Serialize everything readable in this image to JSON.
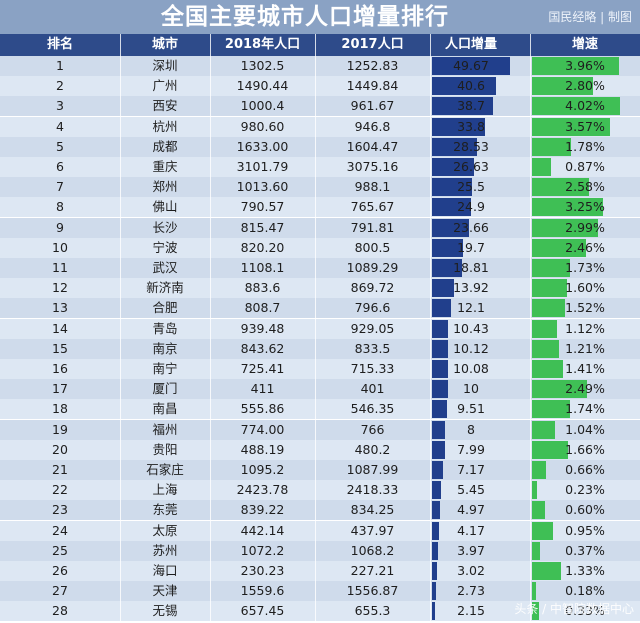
{
  "title": "全国主要城市人口增量排行",
  "credit": "国民经略 | 制图",
  "columns": {
    "rank": "排名",
    "city": "城市",
    "pop_2018": "2018年人口",
    "pop_2017": "2017人口",
    "increase": "人口增量",
    "growth": "增速"
  },
  "watermark": "头条 / 中智院数据中心",
  "colors": {
    "increase_bar": "#213f8c",
    "growth_bar": "#3fbf55",
    "header_bg": "#2e4b8a",
    "title_bg": "#8aa2c4"
  },
  "chart_data": {
    "type": "table",
    "title": "全国主要城市人口增量排行",
    "columns": [
      "排名",
      "城市",
      "2018年人口",
      "2017人口",
      "人口增量",
      "增速"
    ],
    "rows": [
      {
        "rank": "1",
        "city": "深圳",
        "pop_2018": "1302.5",
        "pop_2017": "1252.83",
        "increase": "49.67",
        "growth": "3.96%"
      },
      {
        "rank": "2",
        "city": "广州",
        "pop_2018": "1490.44",
        "pop_2017": "1449.84",
        "increase": "40.6",
        "growth": "2.80%"
      },
      {
        "rank": "3",
        "city": "西安",
        "pop_2018": "1000.4",
        "pop_2017": "961.67",
        "increase": "38.7",
        "growth": "4.02%"
      },
      {
        "rank": "4",
        "city": "杭州",
        "pop_2018": "980.60",
        "pop_2017": "946.8",
        "increase": "33.8",
        "growth": "3.57%"
      },
      {
        "rank": "5",
        "city": "成都",
        "pop_2018": "1633.00",
        "pop_2017": "1604.47",
        "increase": "28.53",
        "growth": "1.78%"
      },
      {
        "rank": "6",
        "city": "重庆",
        "pop_2018": "3101.79",
        "pop_2017": "3075.16",
        "increase": "26.63",
        "growth": "0.87%"
      },
      {
        "rank": "7",
        "city": "郑州",
        "pop_2018": "1013.60",
        "pop_2017": "988.1",
        "increase": "25.5",
        "growth": "2.58%"
      },
      {
        "rank": "8",
        "city": "佛山",
        "pop_2018": "790.57",
        "pop_2017": "765.67",
        "increase": "24.9",
        "growth": "3.25%"
      },
      {
        "rank": "9",
        "city": "长沙",
        "pop_2018": "815.47",
        "pop_2017": "791.81",
        "increase": "23.66",
        "growth": "2.99%"
      },
      {
        "rank": "10",
        "city": "宁波",
        "pop_2018": "820.20",
        "pop_2017": "800.5",
        "increase": "19.7",
        "growth": "2.46%"
      },
      {
        "rank": "11",
        "city": "武汉",
        "pop_2018": "1108.1",
        "pop_2017": "1089.29",
        "increase": "18.81",
        "growth": "1.73%"
      },
      {
        "rank": "12",
        "city": "新济南",
        "pop_2018": "883.6",
        "pop_2017": "869.72",
        "increase": "13.92",
        "growth": "1.60%"
      },
      {
        "rank": "13",
        "city": "合肥",
        "pop_2018": "808.7",
        "pop_2017": "796.6",
        "increase": "12.1",
        "growth": "1.52%"
      },
      {
        "rank": "14",
        "city": "青岛",
        "pop_2018": "939.48",
        "pop_2017": "929.05",
        "increase": "10.43",
        "growth": "1.12%"
      },
      {
        "rank": "15",
        "city": "南京",
        "pop_2018": "843.62",
        "pop_2017": "833.5",
        "increase": "10.12",
        "growth": "1.21%"
      },
      {
        "rank": "16",
        "city": "南宁",
        "pop_2018": "725.41",
        "pop_2017": "715.33",
        "increase": "10.08",
        "growth": "1.41%"
      },
      {
        "rank": "17",
        "city": "厦门",
        "pop_2018": "411",
        "pop_2017": "401",
        "increase": "10",
        "growth": "2.49%"
      },
      {
        "rank": "18",
        "city": "南昌",
        "pop_2018": "555.86",
        "pop_2017": "546.35",
        "increase": "9.51",
        "growth": "1.74%"
      },
      {
        "rank": "19",
        "city": "福州",
        "pop_2018": "774.00",
        "pop_2017": "766",
        "increase": "8",
        "growth": "1.04%"
      },
      {
        "rank": "20",
        "city": "贵阳",
        "pop_2018": "488.19",
        "pop_2017": "480.2",
        "increase": "7.99",
        "growth": "1.66%"
      },
      {
        "rank": "21",
        "city": "石家庄",
        "pop_2018": "1095.2",
        "pop_2017": "1087.99",
        "increase": "7.17",
        "growth": "0.66%"
      },
      {
        "rank": "22",
        "city": "上海",
        "pop_2018": "2423.78",
        "pop_2017": "2418.33",
        "increase": "5.45",
        "growth": "0.23%"
      },
      {
        "rank": "23",
        "city": "东莞",
        "pop_2018": "839.22",
        "pop_2017": "834.25",
        "increase": "4.97",
        "growth": "0.60%"
      },
      {
        "rank": "24",
        "city": "太原",
        "pop_2018": "442.14",
        "pop_2017": "437.97",
        "increase": "4.17",
        "growth": "0.95%"
      },
      {
        "rank": "25",
        "city": "苏州",
        "pop_2018": "1072.2",
        "pop_2017": "1068.2",
        "increase": "3.97",
        "growth": "0.37%"
      },
      {
        "rank": "26",
        "city": "海口",
        "pop_2018": "230.23",
        "pop_2017": "227.21",
        "increase": "3.02",
        "growth": "1.33%"
      },
      {
        "rank": "27",
        "city": "天津",
        "pop_2018": "1559.6",
        "pop_2017": "1556.87",
        "increase": "2.73",
        "growth": "0.18%"
      },
      {
        "rank": "28",
        "city": "无锡",
        "pop_2018": "657.45",
        "pop_2017": "655.3",
        "increase": "2.15",
        "growth": "0.33%"
      }
    ]
  }
}
